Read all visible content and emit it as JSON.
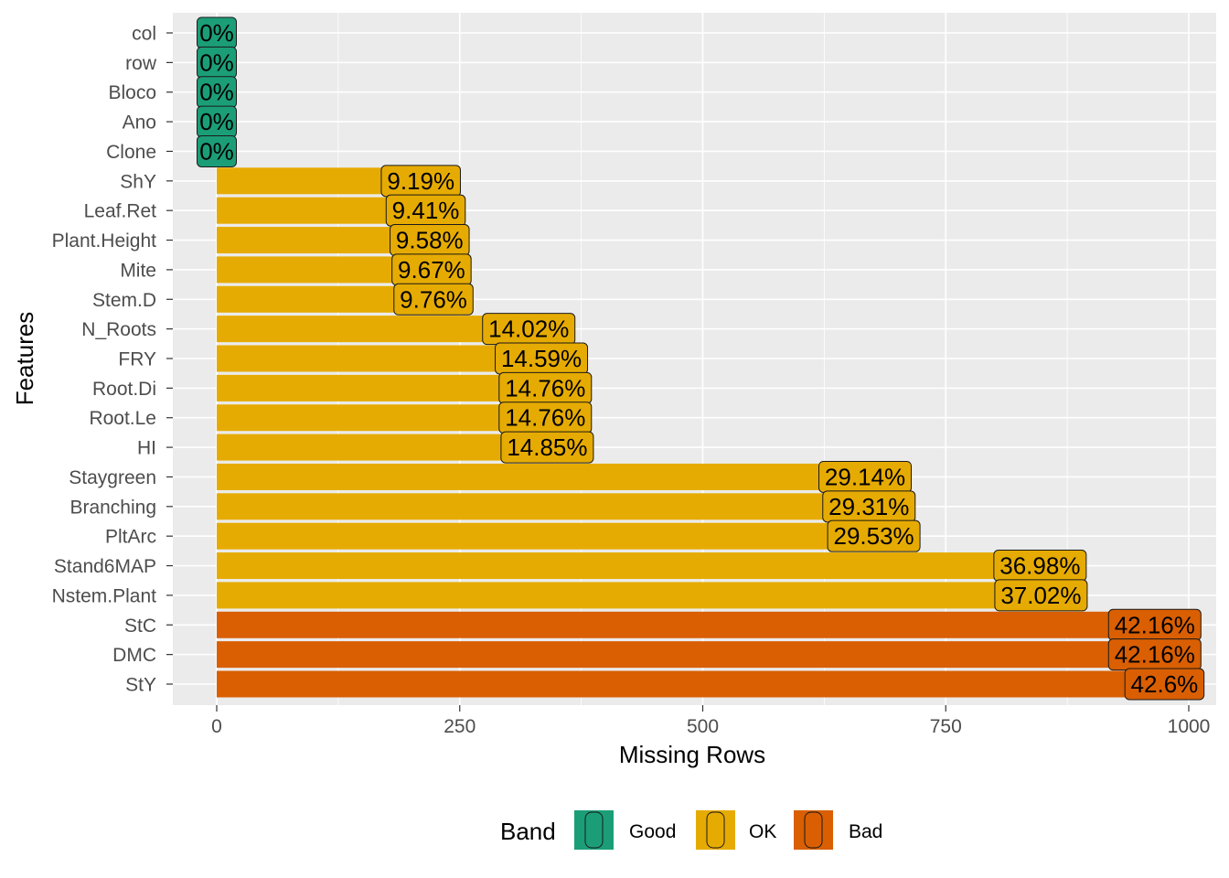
{
  "chart_data": {
    "type": "bar",
    "orientation": "horizontal",
    "xlabel": "Missing Rows",
    "ylabel": "Features",
    "xlim": [
      -90,
      1030
    ],
    "xticks": [
      0,
      250,
      500,
      750,
      1000
    ],
    "grid": true,
    "legend": {
      "title": "Band",
      "position": "bottom",
      "entries": [
        {
          "name": "Good",
          "color": "#1B9E77"
        },
        {
          "name": "OK",
          "color": "#E6AB02"
        },
        {
          "name": "Bad",
          "color": "#D95F02"
        }
      ]
    },
    "bars": [
      {
        "category": "col",
        "value": 0,
        "label": "0%",
        "band": "Good"
      },
      {
        "category": "row",
        "value": 0,
        "label": "0%",
        "band": "Good"
      },
      {
        "category": "Bloco",
        "value": 0,
        "label": "0%",
        "band": "Good"
      },
      {
        "category": "Ano",
        "value": 0,
        "label": "0%",
        "band": "Good"
      },
      {
        "category": "Clone",
        "value": 0,
        "label": "0%",
        "band": "Good"
      },
      {
        "category": "ShY",
        "value": 210,
        "label": "9.19%",
        "band": "OK"
      },
      {
        "category": "Leaf.Ret",
        "value": 215,
        "label": "9.41%",
        "band": "OK"
      },
      {
        "category": "Plant.Height",
        "value": 219,
        "label": "9.58%",
        "band": "OK"
      },
      {
        "category": "Mite",
        "value": 221,
        "label": "9.67%",
        "band": "OK"
      },
      {
        "category": "Stem.D",
        "value": 223,
        "label": "9.76%",
        "band": "OK"
      },
      {
        "category": "N_Roots",
        "value": 321,
        "label": "14.02%",
        "band": "OK"
      },
      {
        "category": "FRY",
        "value": 334,
        "label": "14.59%",
        "band": "OK"
      },
      {
        "category": "Root.Di",
        "value": 338,
        "label": "14.76%",
        "band": "OK"
      },
      {
        "category": "Root.Le",
        "value": 338,
        "label": "14.76%",
        "band": "OK"
      },
      {
        "category": "HI",
        "value": 340,
        "label": "14.85%",
        "band": "OK"
      },
      {
        "category": "Staygreen",
        "value": 667,
        "label": "29.14%",
        "band": "OK"
      },
      {
        "category": "Branching",
        "value": 671,
        "label": "29.31%",
        "band": "OK"
      },
      {
        "category": "PltArc",
        "value": 676,
        "label": "29.53%",
        "band": "OK"
      },
      {
        "category": "Stand6MAP",
        "value": 847,
        "label": "36.98%",
        "band": "OK"
      },
      {
        "category": "Nstem.Plant",
        "value": 848,
        "label": "37.02%",
        "band": "OK"
      },
      {
        "category": "StC",
        "value": 965,
        "label": "42.16%",
        "band": "Bad"
      },
      {
        "category": "DMC",
        "value": 965,
        "label": "42.16%",
        "band": "Bad"
      },
      {
        "category": "StY",
        "value": 975,
        "label": "42.6%",
        "band": "Bad"
      }
    ]
  }
}
